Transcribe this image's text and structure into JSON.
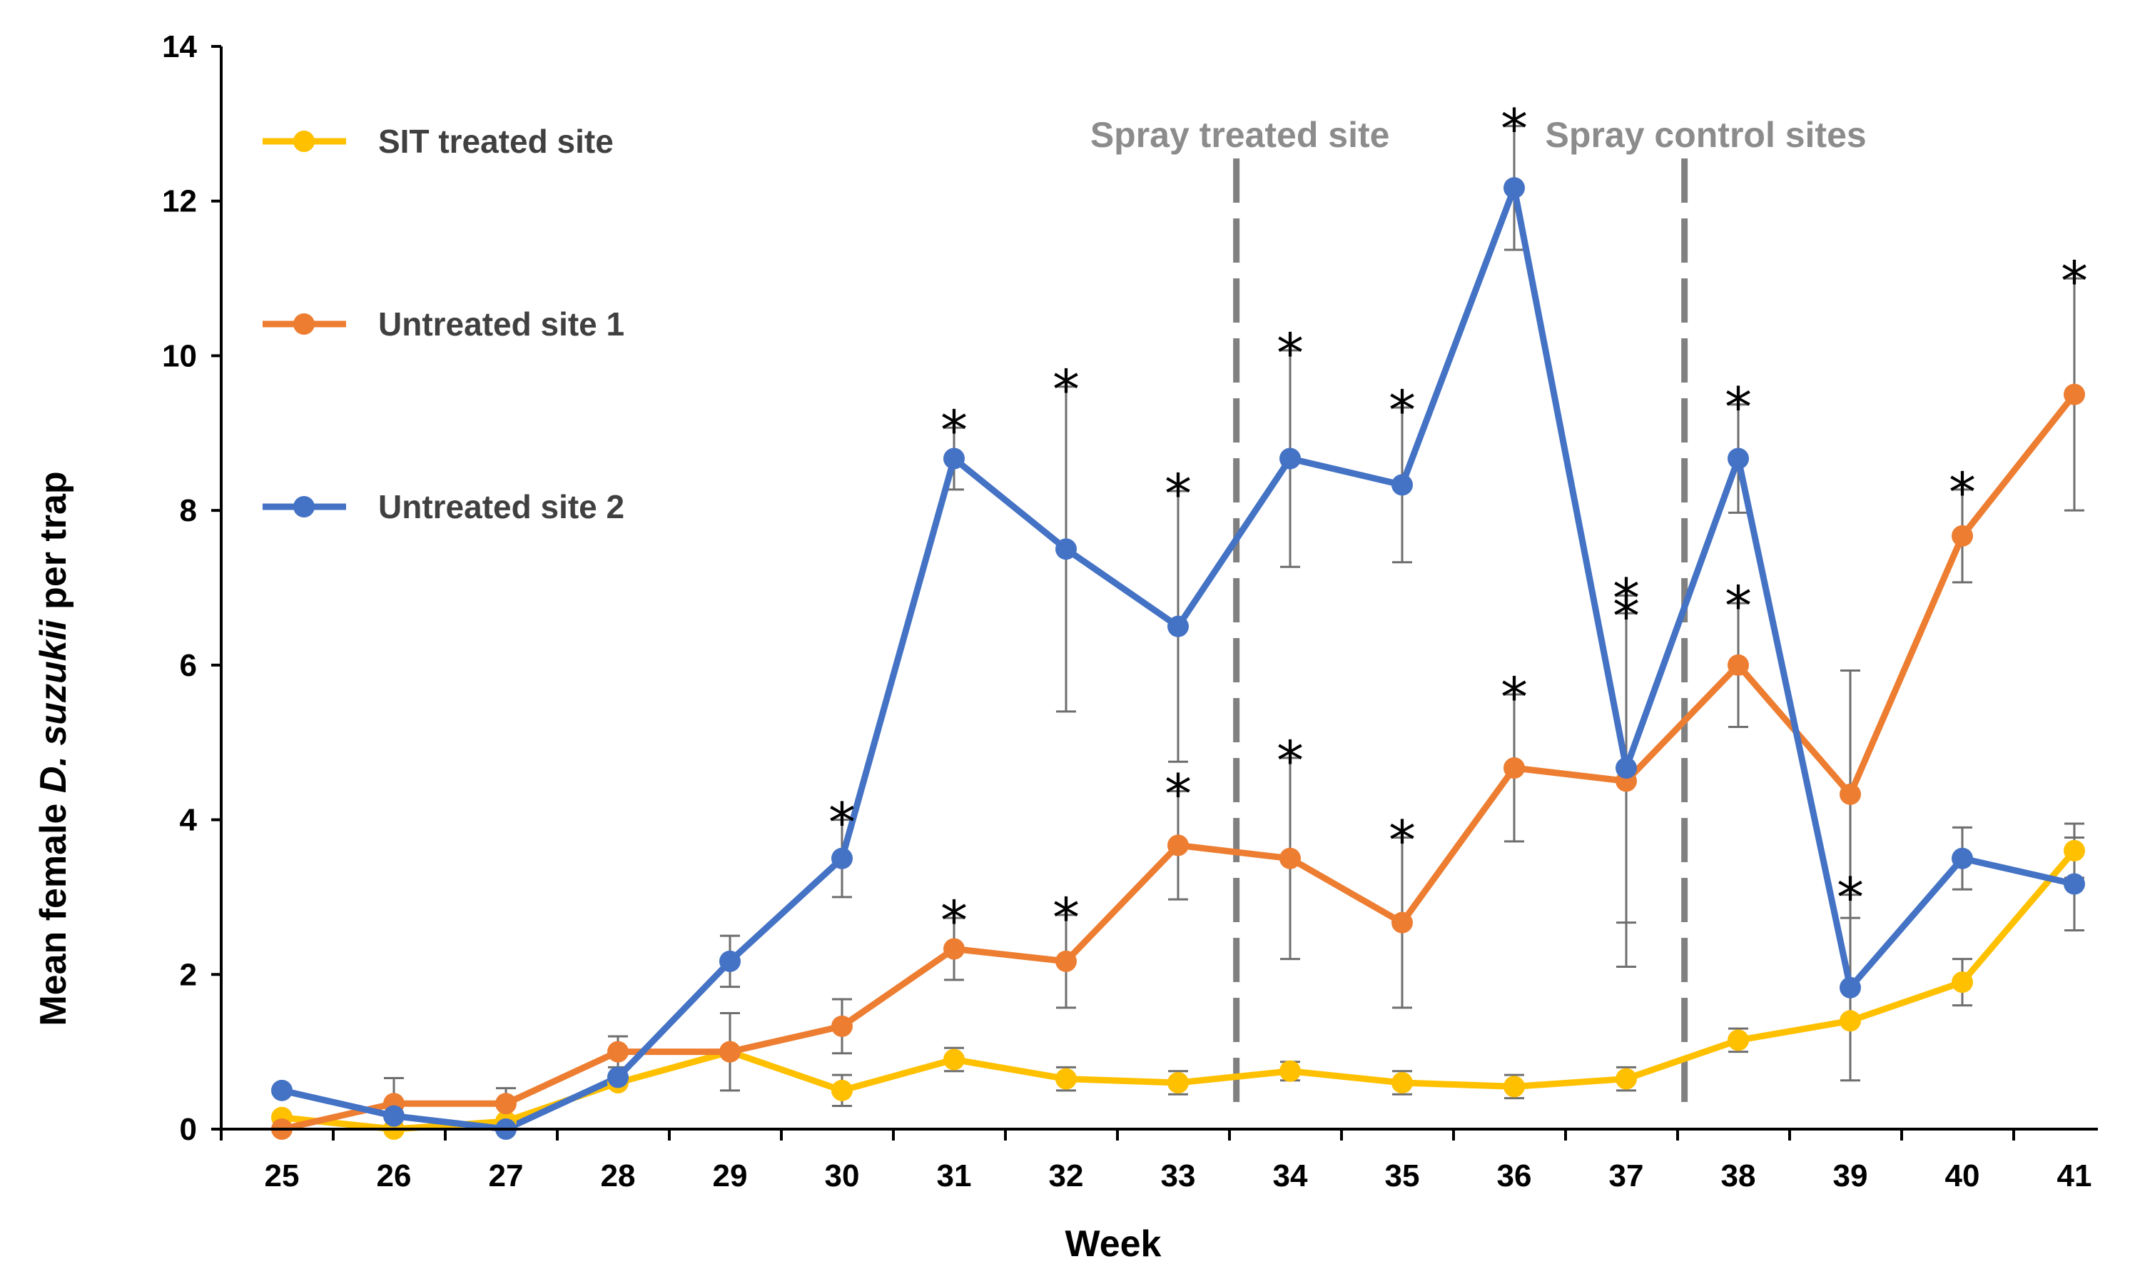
{
  "chart_data": {
    "type": "line",
    "xlabel": "Week",
    "ylabel_prefix": "Mean female ",
    "ylabel_italic": "D. suzukii",
    "ylabel_suffix": " per trap",
    "ylim": [
      0,
      14
    ],
    "ytick_values": [
      0,
      2,
      4,
      6,
      8,
      10,
      12,
      14
    ],
    "ytick_labels": [
      "0",
      "2",
      "4",
      "6",
      "8",
      "10",
      "12",
      "14"
    ],
    "x": [
      "25",
      "26",
      "27",
      "28",
      "29",
      "30",
      "31",
      "32",
      "33",
      "34",
      "35",
      "36",
      "37",
      "38",
      "39",
      "40",
      "41"
    ],
    "series": [
      {
        "name": "SIT treated site",
        "color": "#FFC000",
        "values": [
          0.15,
          0.0,
          0.1,
          0.6,
          1.0,
          0.5,
          0.9,
          0.65,
          0.6,
          0.75,
          0.6,
          0.55,
          0.65,
          1.15,
          1.4,
          1.9,
          3.6
        ],
        "errors": [
          0.0,
          0.0,
          0.0,
          0.0,
          0.0,
          0.2,
          0.15,
          0.15,
          0.15,
          0.12,
          0.15,
          0.15,
          0.15,
          0.15,
          0.0,
          0.3,
          0.35
        ],
        "stars": []
      },
      {
        "name": "Untreated site 1",
        "color": "#ED7D31",
        "values": [
          0.0,
          0.33,
          0.33,
          1.0,
          1.0,
          1.33,
          2.33,
          2.17,
          3.67,
          3.5,
          2.67,
          4.67,
          4.5,
          6.0,
          4.33,
          7.67,
          9.5
        ],
        "errors": [
          0.0,
          0.33,
          0.2,
          0.2,
          0.5,
          0.35,
          0.4,
          0.6,
          0.7,
          1.3,
          1.1,
          0.95,
          2.4,
          0.8,
          1.6,
          0.6,
          1.5
        ],
        "stars": [
          "31",
          "32",
          "33",
          "34",
          "35",
          "36",
          "37",
          "38",
          "40",
          "41"
        ]
      },
      {
        "name": "Untreated site 2",
        "color": "#4472C4",
        "values": [
          0.5,
          0.17,
          0.0,
          0.67,
          2.17,
          3.5,
          8.67,
          7.5,
          6.5,
          8.67,
          8.33,
          12.17,
          4.67,
          8.67,
          1.83,
          3.5,
          3.17
        ],
        "errors": [
          0.0,
          0.0,
          0.0,
          0.0,
          0.33,
          0.5,
          0.4,
          2.1,
          1.75,
          1.4,
          1.0,
          0.8,
          2.0,
          0.7,
          1.2,
          0.4,
          0.6
        ],
        "stars": [
          "30",
          "31",
          "32",
          "33",
          "34",
          "35",
          "36",
          "37",
          "38",
          "39"
        ]
      }
    ],
    "vertical_lines": [
      {
        "label": "Spray treated site",
        "after_week": "33"
      },
      {
        "label": "Spray control sites",
        "after_week": "37"
      }
    ],
    "significance_marker": "*"
  }
}
